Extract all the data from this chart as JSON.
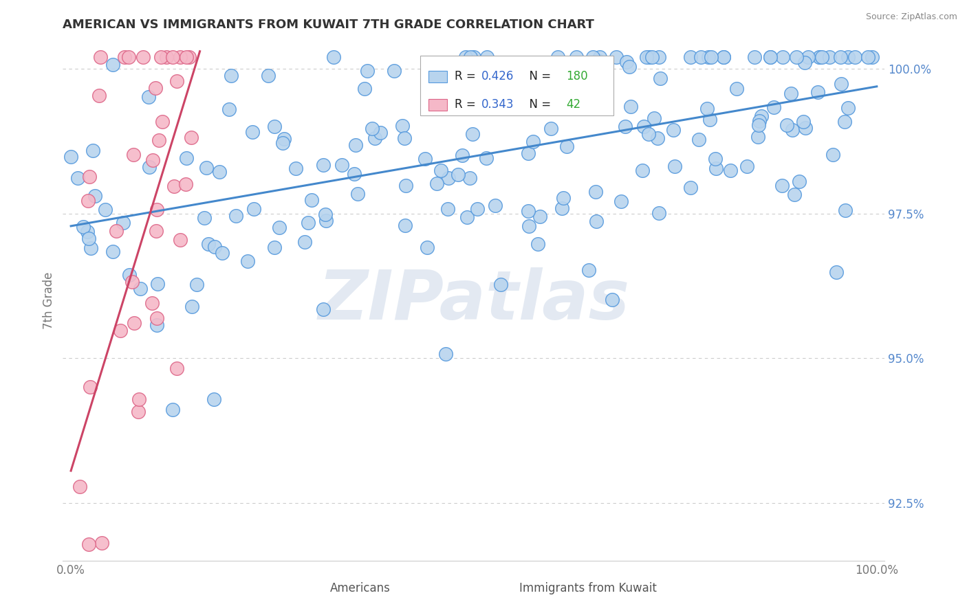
{
  "title": "AMERICAN VS IMMIGRANTS FROM KUWAIT 7TH GRADE CORRELATION CHART",
  "source_text": "Source: ZipAtlas.com",
  "ylabel": "7th Grade",
  "watermark": "ZIPatlas",
  "r_american": 0.426,
  "n_american": 180,
  "r_kuwait": 0.343,
  "n_kuwait": 42,
  "x_min": 0.0,
  "x_max": 1.0,
  "y_min": 0.915,
  "y_max": 1.005,
  "ytick_vals": [
    0.925,
    0.95,
    0.975,
    1.0
  ],
  "ytick_labels_right": [
    "92.5%",
    "95.0%",
    "97.5%",
    "100.0%"
  ],
  "color_american_face": "#b8d4ee",
  "color_american_edge": "#5599dd",
  "color_kuwait_face": "#f5b8c8",
  "color_kuwait_edge": "#dd6688",
  "color_trendline_american": "#4488cc",
  "color_trendline_kuwait": "#cc4466",
  "background_color": "#ffffff",
  "grid_color": "#cccccc",
  "legend_r_color": "#3366cc",
  "legend_n_color": "#33aa33",
  "axis_label_color": "#777777",
  "tick_label_color": "#5588cc"
}
